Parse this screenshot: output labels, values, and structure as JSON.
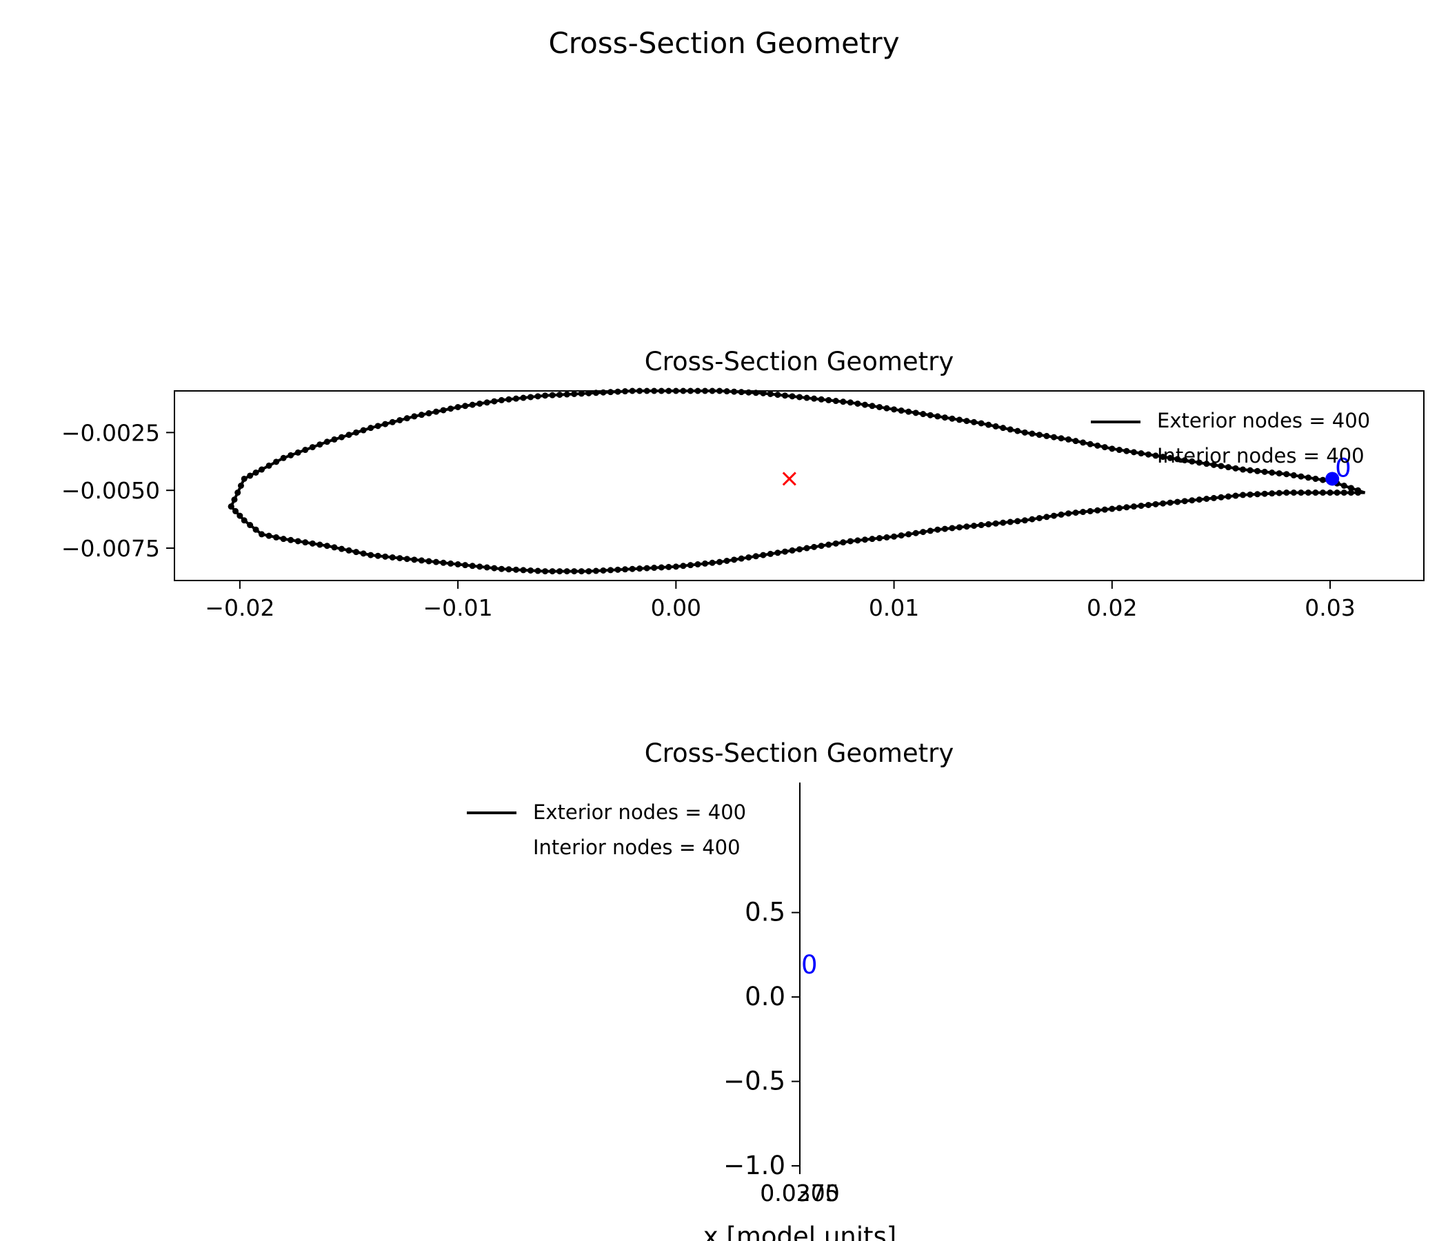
{
  "figure": {
    "suptitle": "Cross-Section Geometry"
  },
  "colors": {
    "nodes": "#000000",
    "start_marker": "#0000ff",
    "centroid": "#ff0000",
    "axes": "#000000"
  },
  "chart_data": [
    {
      "type": "scatter",
      "title": "Cross-Section Geometry",
      "xlabel": "",
      "ylabel": "",
      "xlim": [
        -0.023,
        0.0343
      ],
      "ylim": [
        -0.0089,
        -0.0007
      ],
      "xticks": [
        -0.02,
        -0.01,
        0.0,
        0.01,
        0.02,
        0.03
      ],
      "xtick_labels": [
        "−0.02",
        "−0.01",
        "0.00",
        "0.01",
        "0.02",
        "0.03"
      ],
      "yticks": [
        -0.0025,
        -0.005,
        -0.0075
      ],
      "ytick_labels": [
        "−0.0025",
        "−0.0050",
        "−0.0075"
      ],
      "legend": {
        "placement": "top-right",
        "entries": [
          "Exterior nodes = 400",
          "Interior nodes = 400"
        ]
      },
      "airfoil_outline": {
        "upper_surface": [
          [
            -0.0204,
            -0.0057
          ],
          [
            -0.0198,
            -0.0045
          ],
          [
            -0.019,
            -0.0041
          ],
          [
            -0.018,
            -0.0036
          ],
          [
            -0.016,
            -0.0029
          ],
          [
            -0.014,
            -0.0023
          ],
          [
            -0.012,
            -0.0018
          ],
          [
            -0.01,
            -0.0014
          ],
          [
            -0.008,
            -0.0011
          ],
          [
            -0.006,
            -0.0009
          ],
          [
            -0.004,
            -0.0008
          ],
          [
            -0.002,
            -0.0007
          ],
          [
            0.0,
            -0.0007
          ],
          [
            0.002,
            -0.0007
          ],
          [
            0.004,
            -0.0008
          ],
          [
            0.006,
            -0.001
          ],
          [
            0.008,
            -0.0012
          ],
          [
            0.01,
            -0.0015
          ],
          [
            0.012,
            -0.0018
          ],
          [
            0.014,
            -0.0021
          ],
          [
            0.016,
            -0.0025
          ],
          [
            0.018,
            -0.0028
          ],
          [
            0.02,
            -0.0032
          ],
          [
            0.022,
            -0.0035
          ],
          [
            0.024,
            -0.0038
          ],
          [
            0.026,
            -0.0041
          ],
          [
            0.028,
            -0.0043
          ],
          [
            0.03,
            -0.0046
          ],
          [
            0.0316,
            -0.0051
          ]
        ],
        "lower_surface": [
          [
            -0.0204,
            -0.0057
          ],
          [
            -0.0198,
            -0.0063
          ],
          [
            -0.019,
            -0.0069
          ],
          [
            -0.018,
            -0.0071
          ],
          [
            -0.016,
            -0.0074
          ],
          [
            -0.014,
            -0.0078
          ],
          [
            -0.012,
            -0.008
          ],
          [
            -0.01,
            -0.0082
          ],
          [
            -0.008,
            -0.0084
          ],
          [
            -0.006,
            -0.0085
          ],
          [
            -0.004,
            -0.0085
          ],
          [
            -0.002,
            -0.0084
          ],
          [
            0.0,
            -0.0083
          ],
          [
            0.002,
            -0.0081
          ],
          [
            0.004,
            -0.0078
          ],
          [
            0.006,
            -0.0075
          ],
          [
            0.008,
            -0.0072
          ],
          [
            0.01,
            -0.007
          ],
          [
            0.012,
            -0.0067
          ],
          [
            0.014,
            -0.0065
          ],
          [
            0.016,
            -0.0063
          ],
          [
            0.018,
            -0.006
          ],
          [
            0.02,
            -0.0058
          ],
          [
            0.022,
            -0.0056
          ],
          [
            0.024,
            -0.0054
          ],
          [
            0.026,
            -0.0052
          ],
          [
            0.028,
            -0.0051
          ],
          [
            0.03,
            -0.0051
          ],
          [
            0.0316,
            -0.0051
          ]
        ]
      },
      "start_node": {
        "x": 0.0301,
        "y": -0.0045,
        "label": "0"
      },
      "centroid": {
        "x": 0.0052,
        "y": -0.0045,
        "marker": "x"
      }
    },
    {
      "type": "scatter",
      "title": "Cross-Section Geometry",
      "xlabel": "x [model units]",
      "ylabel": "",
      "ylim": [
        -1.0,
        1.0
      ],
      "yticks": [
        0.5,
        0.0,
        -0.5,
        -1.0
      ],
      "ytick_labels": [
        "0.5",
        "0.0",
        "−0.5",
        "−1.0"
      ],
      "xtick_labels_overlapping": [
        "0.0275",
        "0.0300"
      ],
      "legend": {
        "placement": "top-left",
        "entries": [
          "Exterior nodes = 400",
          "Interior nodes = 400"
        ]
      },
      "start_node": {
        "x": 0.03,
        "y": 0.0,
        "label": "0"
      }
    }
  ]
}
